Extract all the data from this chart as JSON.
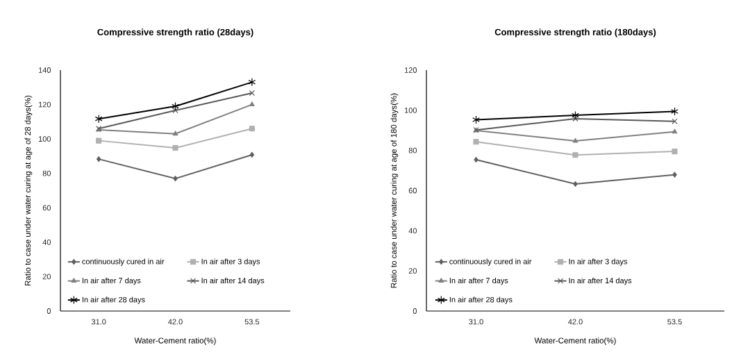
{
  "chart_data": [
    {
      "type": "line",
      "title": "Compressive strength ratio (28days)",
      "xlabel": "Water-Cement ratio(%)",
      "ylabel": "Ratio to case under water curing at age of 28 days(%)",
      "categories": [
        "31.0",
        "42.0",
        "53.5"
      ],
      "ylim": [
        0,
        140
      ],
      "yticks": [
        0,
        20,
        40,
        60,
        80,
        100,
        120,
        140
      ],
      "legend": "bottom left",
      "series": [
        {
          "name": "continuously cured in air",
          "color": "#5f5f5f",
          "marker": "diamond",
          "values": [
            88.3,
            77,
            90.8
          ]
        },
        {
          "name": "In air after 3 days",
          "color": "#b0b0b0",
          "marker": "square",
          "values": [
            99,
            94.8,
            106
          ]
        },
        {
          "name": "In air after 7 days",
          "color": "#808080",
          "marker": "triangle",
          "values": [
            105.3,
            103,
            120
          ]
        },
        {
          "name": "In air after 14 days",
          "color": "#595959",
          "marker": "cross",
          "values": [
            106,
            116.6,
            126.7
          ]
        },
        {
          "name": "In air after 28 days",
          "color": "#000000",
          "marker": "star",
          "values": [
            111.7,
            119,
            133
          ]
        }
      ]
    },
    {
      "type": "line",
      "title": "Compressive strength ratio (180days)",
      "xlabel": "Water-Cement ratio(%)",
      "ylabel": "Ratio to case under water curing at age of 180 days(%)",
      "categories": [
        "31.0",
        "42.0",
        "53.5"
      ],
      "ylim": [
        0,
        120
      ],
      "yticks": [
        0,
        20,
        40,
        60,
        80,
        100,
        120
      ],
      "legend": "bottom left",
      "series": [
        {
          "name": "continuously cured in air",
          "color": "#5f5f5f",
          "marker": "diamond",
          "values": [
            75.4,
            63.3,
            67.9
          ]
        },
        {
          "name": "In air after 3 days",
          "color": "#b0b0b0",
          "marker": "square",
          "values": [
            84.3,
            77.7,
            79.5
          ]
        },
        {
          "name": "In air after 7 days",
          "color": "#808080",
          "marker": "triangle",
          "values": [
            89.9,
            84.7,
            89.3
          ]
        },
        {
          "name": "In air after 14 days",
          "color": "#595959",
          "marker": "cross",
          "values": [
            90.2,
            95.8,
            94.5
          ]
        },
        {
          "name": "In air after 28 days",
          "color": "#000000",
          "marker": "star",
          "values": [
            95.3,
            97.5,
            99.4
          ]
        }
      ]
    }
  ]
}
